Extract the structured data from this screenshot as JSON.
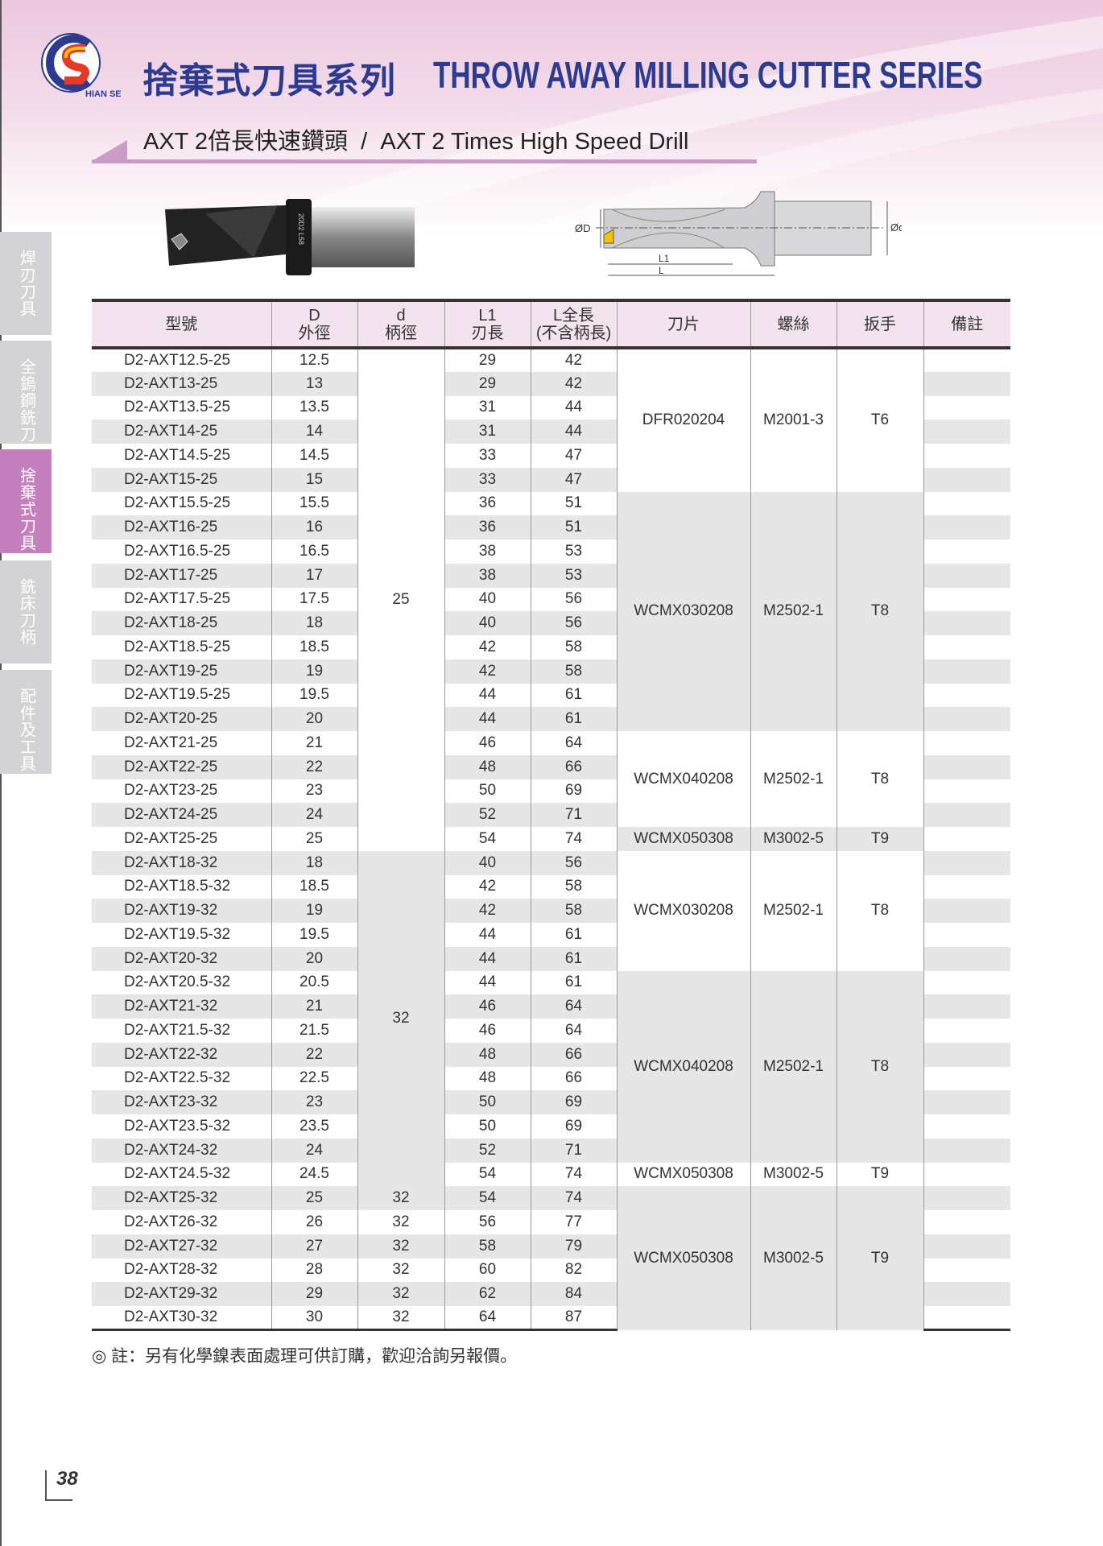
{
  "brand": {
    "logo_text": "HIAN SENG",
    "colors": {
      "blue": "#2c3a90",
      "red": "#e53a2a",
      "yellow": "#f5c400"
    }
  },
  "header": {
    "title_zh": "捨棄式刀具系列",
    "title_en": "THROW AWAY MILLING CUTTER SERIES",
    "subtitle": "AXT 2倍長快速鑽頭  /  AXT 2 Times High Speed Drill"
  },
  "sidebar": {
    "items": [
      {
        "label": "焊刃刀具",
        "active": false
      },
      {
        "label": "全鎢鋼銑刀",
        "active": false
      },
      {
        "label": "捨棄式刀具",
        "active": true
      },
      {
        "label": "銑床刀柄",
        "active": false
      },
      {
        "label": "配件及工具",
        "active": false
      }
    ]
  },
  "diagram": {
    "labels": {
      "D": "ØD",
      "d": "Ød",
      "L1": "L1",
      "L": "L"
    },
    "photo_marking": "20D2 L58"
  },
  "table": {
    "headers": [
      [
        "型號"
      ],
      [
        "D",
        "外徑"
      ],
      [
        "d",
        "柄徑"
      ],
      [
        "L1",
        "刃長"
      ],
      [
        "L全長",
        "(不含柄長)"
      ],
      [
        "刀片"
      ],
      [
        "螺絲"
      ],
      [
        "扳手"
      ],
      [
        "備註"
      ]
    ],
    "rows": [
      [
        "D2-AXT12.5-25",
        "12.5",
        "29",
        "42"
      ],
      [
        "D2-AXT13-25",
        "13",
        "29",
        "42"
      ],
      [
        "D2-AXT13.5-25",
        "13.5",
        "31",
        "44"
      ],
      [
        "D2-AXT14-25",
        "14",
        "31",
        "44"
      ],
      [
        "D2-AXT14.5-25",
        "14.5",
        "33",
        "47"
      ],
      [
        "D2-AXT15-25",
        "15",
        "33",
        "47"
      ],
      [
        "D2-AXT15.5-25",
        "15.5",
        "36",
        "51"
      ],
      [
        "D2-AXT16-25",
        "16",
        "36",
        "51"
      ],
      [
        "D2-AXT16.5-25",
        "16.5",
        "38",
        "53"
      ],
      [
        "D2-AXT17-25",
        "17",
        "38",
        "53"
      ],
      [
        "D2-AXT17.5-25",
        "17.5",
        "40",
        "56"
      ],
      [
        "D2-AXT18-25",
        "18",
        "40",
        "56"
      ],
      [
        "D2-AXT18.5-25",
        "18.5",
        "42",
        "58"
      ],
      [
        "D2-AXT19-25",
        "19",
        "42",
        "58"
      ],
      [
        "D2-AXT19.5-25",
        "19.5",
        "44",
        "61"
      ],
      [
        "D2-AXT20-25",
        "20",
        "44",
        "61"
      ],
      [
        "D2-AXT21-25",
        "21",
        "46",
        "64"
      ],
      [
        "D2-AXT22-25",
        "22",
        "48",
        "66"
      ],
      [
        "D2-AXT23-25",
        "23",
        "50",
        "69"
      ],
      [
        "D2-AXT24-25",
        "24",
        "52",
        "71"
      ],
      [
        "D2-AXT25-25",
        "25",
        "54",
        "74"
      ],
      [
        "D2-AXT18-32",
        "18",
        "40",
        "56"
      ],
      [
        "D2-AXT18.5-32",
        "18.5",
        "42",
        "58"
      ],
      [
        "D2-AXT19-32",
        "19",
        "42",
        "58"
      ],
      [
        "D2-AXT19.5-32",
        "19.5",
        "44",
        "61"
      ],
      [
        "D2-AXT20-32",
        "20",
        "44",
        "61"
      ],
      [
        "D2-AXT20.5-32",
        "20.5",
        "44",
        "61"
      ],
      [
        "D2-AXT21-32",
        "21",
        "46",
        "64"
      ],
      [
        "D2-AXT21.5-32",
        "21.5",
        "46",
        "64"
      ],
      [
        "D2-AXT22-32",
        "22",
        "48",
        "66"
      ],
      [
        "D2-AXT22.5-32",
        "22.5",
        "48",
        "66"
      ],
      [
        "D2-AXT23-32",
        "23",
        "50",
        "69"
      ],
      [
        "D2-AXT23.5-32",
        "23.5",
        "50",
        "69"
      ],
      [
        "D2-AXT24-32",
        "24",
        "52",
        "71"
      ],
      [
        "D2-AXT24.5-32",
        "24.5",
        "54",
        "74"
      ],
      [
        "D2-AXT25-32",
        "25",
        "54",
        "74"
      ],
      [
        "D2-AXT26-32",
        "26",
        "56",
        "77"
      ],
      [
        "D2-AXT27-32",
        "27",
        "58",
        "79"
      ],
      [
        "D2-AXT28-32",
        "28",
        "60",
        "82"
      ],
      [
        "D2-AXT29-32",
        "29",
        "62",
        "84"
      ],
      [
        "D2-AXT30-32",
        "30",
        "64",
        "87"
      ]
    ],
    "shank_groups": [
      {
        "value": "25",
        "rows": 21
      },
      {
        "value": "32",
        "rows": 14
      },
      {
        "value": "32",
        "rows": 1
      },
      {
        "value": "32",
        "rows": 1
      },
      {
        "value": "32",
        "rows": 1
      },
      {
        "value": "32",
        "rows": 1
      },
      {
        "value": "32",
        "rows": 1
      },
      {
        "value": "32",
        "rows": 1
      }
    ],
    "insert_groups": [
      {
        "insert": "DFR020204",
        "screw": "M2001-3",
        "wrench": "T6",
        "rows": 6
      },
      {
        "insert": "WCMX030208",
        "screw": "M2502-1",
        "wrench": "T8",
        "rows": 10
      },
      {
        "insert": "WCMX040208",
        "screw": "M2502-1",
        "wrench": "T8",
        "rows": 4
      },
      {
        "insert": "WCMX050308",
        "screw": "M3002-5",
        "wrench": "T9",
        "rows": 1
      },
      {
        "insert": "WCMX030208",
        "screw": "M2502-1",
        "wrench": "T8",
        "rows": 5
      },
      {
        "insert": "WCMX040208",
        "screw": "M2502-1",
        "wrench": "T8",
        "rows": 8
      },
      {
        "insert": "WCMX050308",
        "screw": "M3002-5",
        "wrench": "T9",
        "rows": 1
      },
      {
        "insert": "WCMX050308",
        "screw": "M3002-5",
        "wrench": "T9",
        "rows": 6
      }
    ]
  },
  "note": "◎  註：另有化學鎳表面處理可供訂購，歡迎洽詢另報價。",
  "page_number": "38"
}
